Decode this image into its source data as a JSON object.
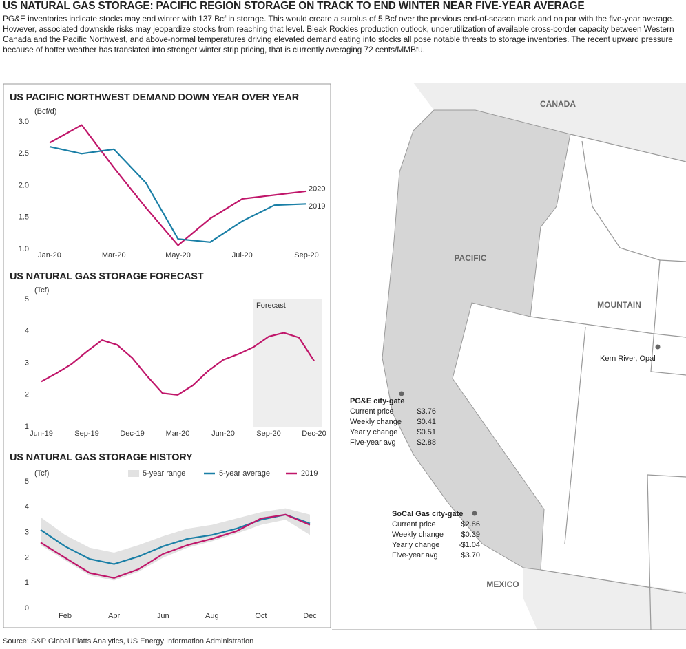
{
  "header": {
    "title": "US NATURAL GAS STORAGE: PACIFIC REGION STORAGE ON TRACK TO END WINTER NEAR FIVE-YEAR AVERAGE",
    "text": "PG&E inventories indicate stocks may end winter with 137 Bcf in storage. This would create a surplus of 5 Bcf over the previous end-of-season mark and on par with the five-year average. However, associated downside risks may jeopardize stocks from reaching that level. Bleak Rockies production outlook, underutilization of available cross-border capacity between Western Canada and the Pacific Northwest, and above-normal temperatures driving elevated demand eating into stocks all pose notable threats to storage inventories. The recent upward pressure because of hotter weather has translated into stronger winter strip pricing, that is currently averaging 72 cents/MMBtu."
  },
  "chart_data": [
    {
      "type": "line",
      "title": "US PACIFIC NORTHWEST DEMAND DOWN YEAR OVER YEAR",
      "y_label": "(Bcf/d)",
      "categories": [
        "Jan-20",
        null,
        "Mar-20",
        null,
        "May-20",
        null,
        "Jul-20",
        null,
        "Sep-20"
      ],
      "series": [
        {
          "name": "2020",
          "color": "#c0166a",
          "values": [
            2.67,
            2.95,
            2.28,
            1.65,
            1.06,
            1.48,
            1.79,
            1.85,
            1.91
          ]
        },
        {
          "name": "2019",
          "color": "#1a7fa6",
          "values": [
            2.61,
            2.5,
            2.57,
            2.04,
            1.16,
            1.11,
            1.44,
            1.69,
            1.71
          ]
        }
      ],
      "ylim": [
        1,
        3
      ],
      "yticks": [
        {
          "value": 1,
          "label": "1.0"
        },
        1.5,
        {
          "value": 2,
          "label": "2.0"
        },
        2.5,
        {
          "value": 3,
          "label": "3.0"
        }
      ],
      "legend": "line-end"
    },
    {
      "type": "line",
      "title": "US NATURAL GAS STORAGE FORECAST",
      "y_label": "(Tcf)",
      "categories": [
        "Jun-19",
        null,
        null,
        "Sep-19",
        null,
        null,
        "Dec-19",
        null,
        null,
        "Mar-20",
        null,
        null,
        "Jun-20",
        null,
        null,
        "Sep-20",
        null,
        null,
        "Dec-20"
      ],
      "color": "#c0166a",
      "values": [
        2.42,
        2.68,
        2.97,
        3.36,
        3.72,
        3.57,
        3.16,
        2.58,
        2.05,
        2.0,
        2.3,
        2.75,
        3.1,
        3.28,
        3.5,
        3.83,
        3.95,
        3.8,
        3.07
      ],
      "ylim": [
        1,
        5
      ],
      "yticks": [
        1,
        2,
        3,
        4,
        5
      ],
      "shaded_span": {
        "label": "Forecast",
        "from": 14,
        "to": 18
      }
    },
    {
      "type": "line",
      "title": "US NATURAL GAS STORAGE HISTORY",
      "y_label": "(Tcf)",
      "categories": [
        null,
        "Feb",
        null,
        "Apr",
        null,
        "Jun",
        null,
        "Aug",
        null,
        "Oct",
        null,
        "Dec"
      ],
      "band": {
        "name": "5-year range",
        "color": "#e2e2e2",
        "low": [
          2.5,
          1.9,
          1.3,
          1.1,
          1.45,
          2.0,
          2.4,
          2.65,
          2.95,
          3.3,
          3.5,
          2.9
        ],
        "high": [
          3.6,
          2.9,
          2.4,
          2.2,
          2.5,
          2.85,
          3.15,
          3.3,
          3.55,
          3.8,
          3.95,
          3.7
        ]
      },
      "series": [
        {
          "name": "5-year average",
          "color": "#1a7fa6",
          "values": [
            3.1,
            2.45,
            1.95,
            1.75,
            2.05,
            2.45,
            2.75,
            2.9,
            3.15,
            3.5,
            3.7,
            3.35
          ]
        },
        {
          "name": "2019",
          "color": "#c0166a",
          "values": [
            2.6,
            2.0,
            1.4,
            1.2,
            1.55,
            2.15,
            2.5,
            2.75,
            3.05,
            3.55,
            3.7,
            3.3
          ]
        }
      ],
      "ylim": [
        0,
        5
      ],
      "yticks": [
        0,
        1,
        2,
        3,
        4,
        5
      ],
      "legend": "top"
    }
  ],
  "map": {
    "labels": {
      "canada": "CANADA",
      "pacific": "PACIFIC",
      "mountain": "MOUNTAIN",
      "mexico": "MEXICO"
    },
    "kern_river": "Kern River, Opal",
    "boxes": [
      {
        "name": "PG&E city-gate",
        "rows": [
          [
            "Current price",
            "$3.76"
          ],
          [
            "Weekly change",
            "$0.41"
          ],
          [
            "Yearly change",
            "$0.51"
          ],
          [
            "Five-year avg",
            "$2.88"
          ]
        ]
      },
      {
        "name": "SoCal Gas city-gate",
        "rows": [
          [
            "Current price",
            "$2.86"
          ],
          [
            "Weekly change",
            "$0.39"
          ],
          [
            "Yearly change",
            "-$1.04"
          ],
          [
            "Five-year avg",
            "$3.70"
          ]
        ]
      }
    ]
  },
  "source": "Source: S&P Global Platts Analytics, US Energy Information Administration"
}
